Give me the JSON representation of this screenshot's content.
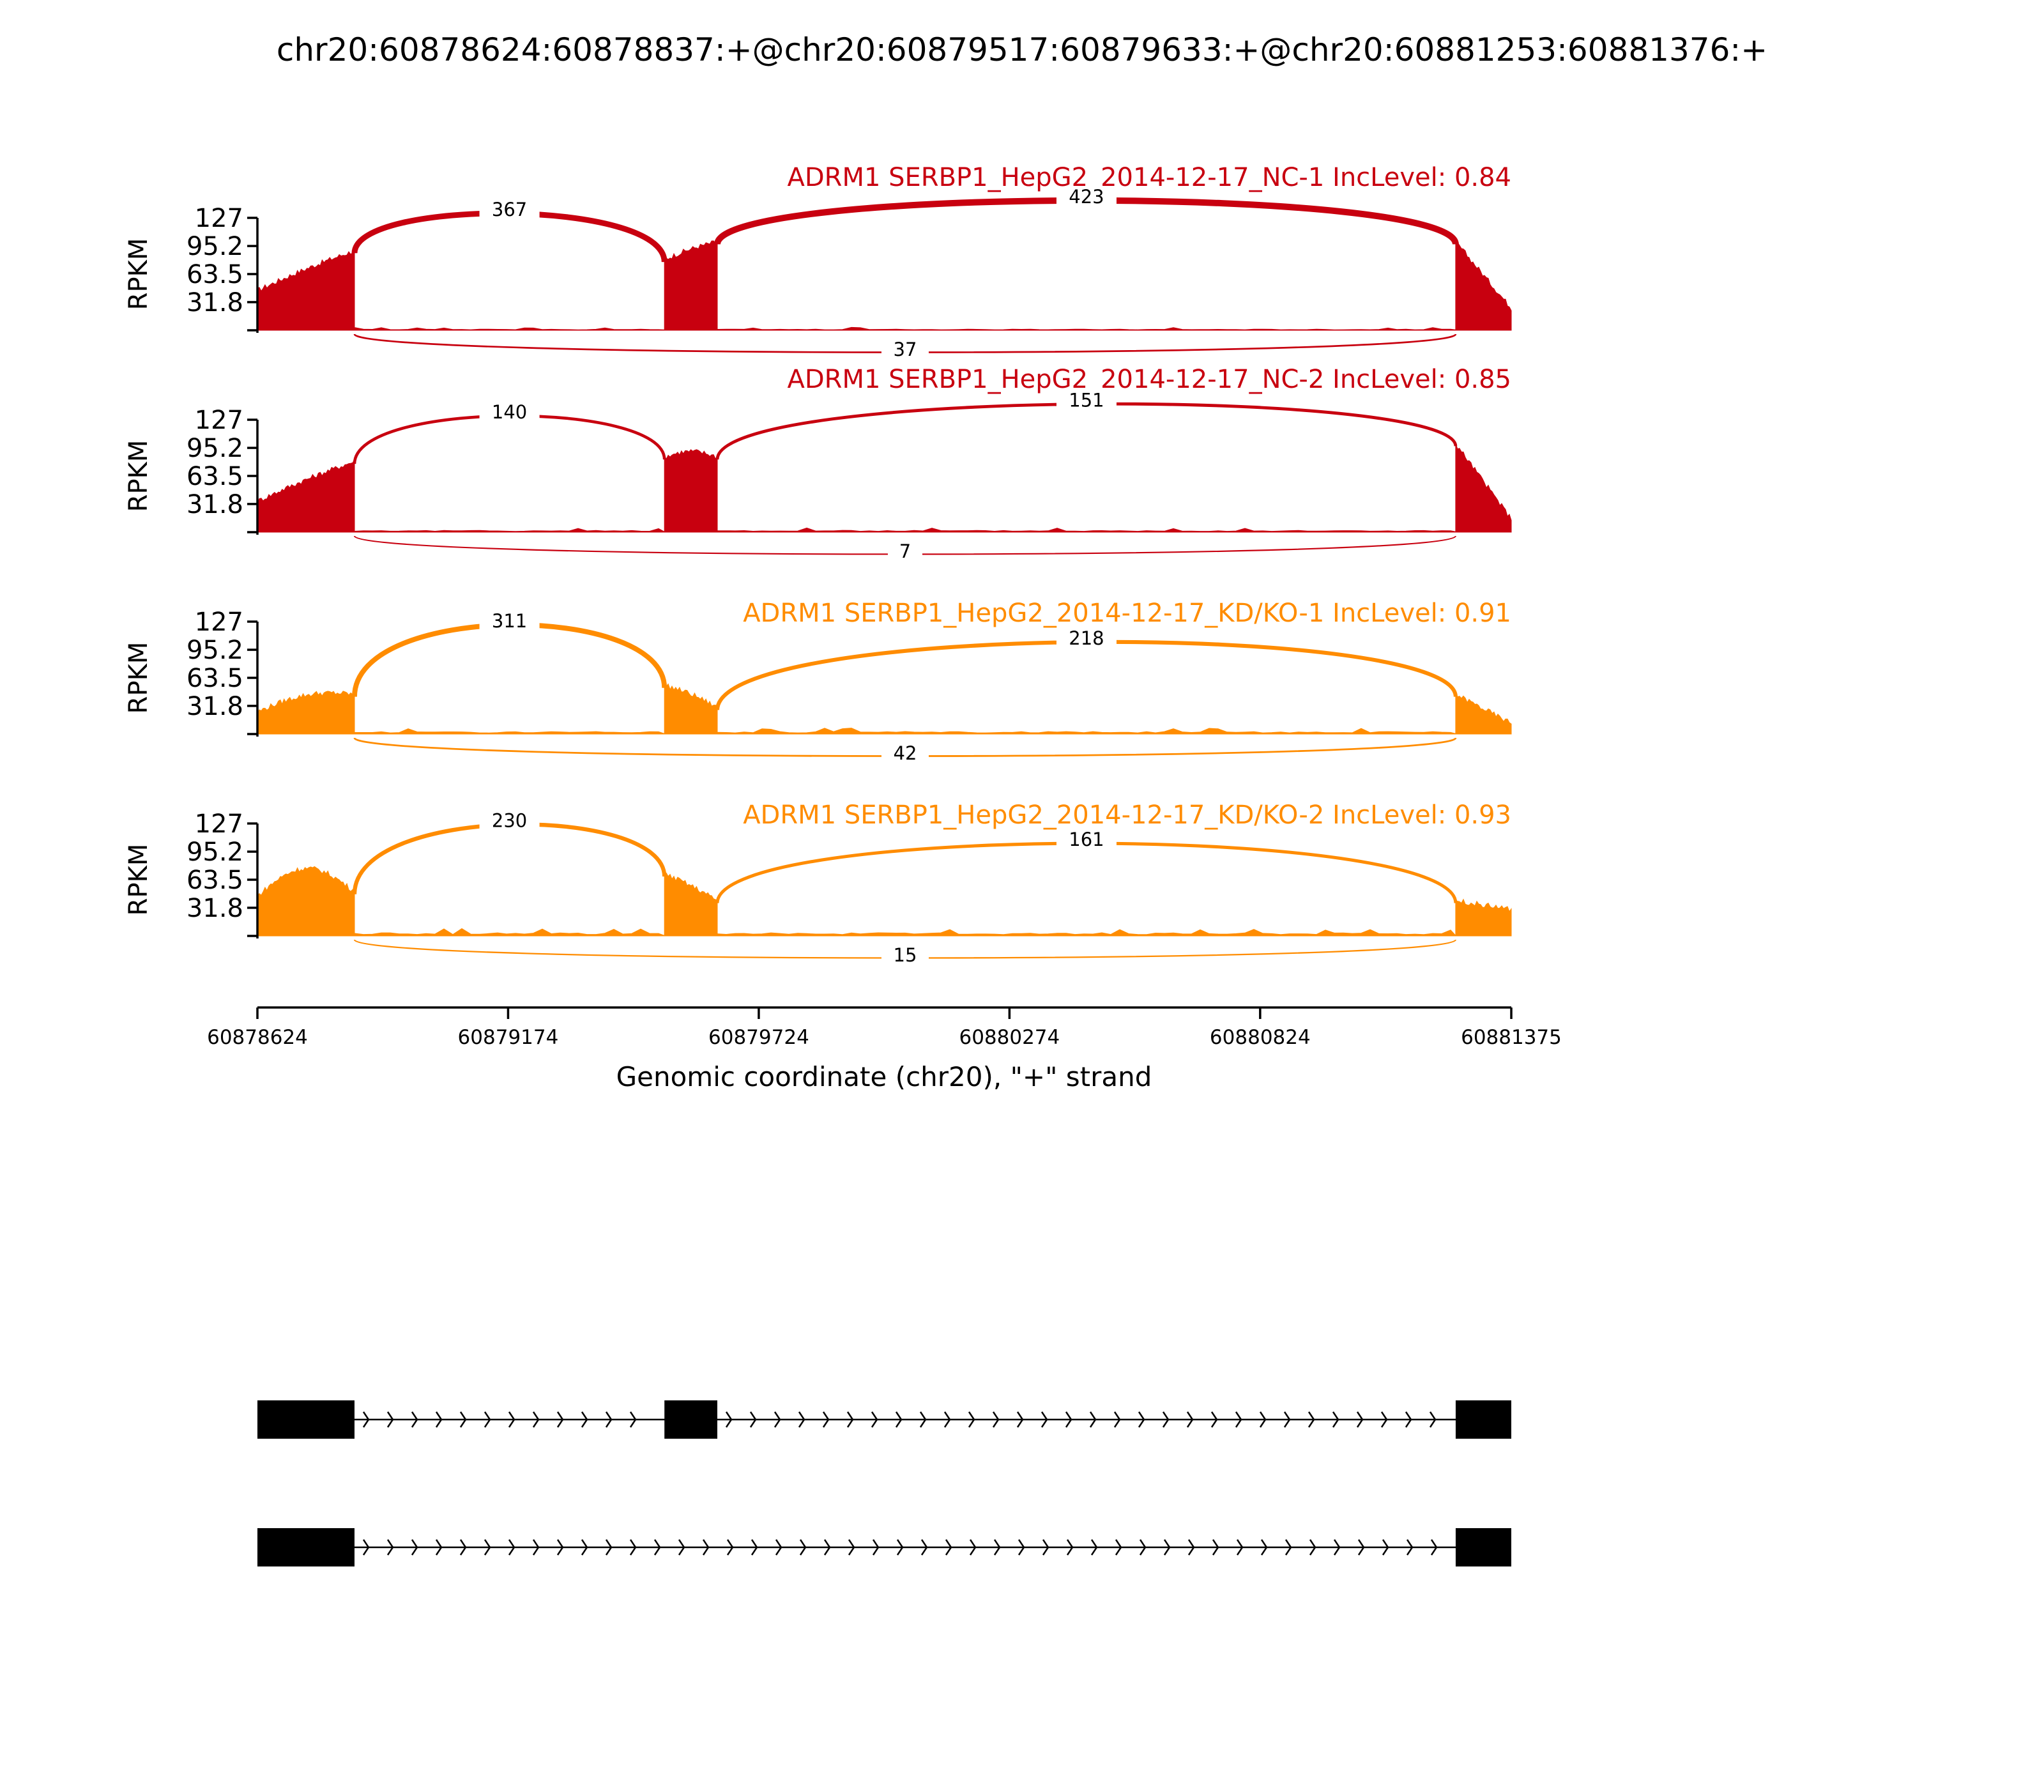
{
  "chart_data": {
    "type": "sashimi",
    "title": "chr20:60878624:60878837:+@chr20:60879517:60879633:+@chr20:60881253:60881376:+",
    "xlabel": "Genomic coordinate (chr20), \"+\" strand",
    "ylabel": "RPKM",
    "xlim": [
      60878624,
      60881375
    ],
    "xticks": [
      "60878624",
      "60879174",
      "60879724",
      "60880274",
      "60880824",
      "60881375"
    ],
    "ylim": [
      0,
      127
    ],
    "yticks": [
      "127",
      "95.2",
      "63.5",
      "31.8"
    ],
    "exons": [
      [
        60878624,
        60878837
      ],
      [
        60879517,
        60879633
      ],
      [
        60881253,
        60881376
      ]
    ],
    "colors": {
      "NC": "#c8000f",
      "KD": "#ff8c00"
    },
    "samples": [
      {
        "name": "ADRM1 SERBP1_HepG2_2014-12-17_NC-1 IncLevel: 0.84",
        "color": "#c8000f",
        "junctions": [
          {
            "from": 60878837,
            "to": 60879517,
            "count": "367"
          },
          {
            "from": 60879633,
            "to": 60881253,
            "count": "423"
          },
          {
            "from": 60878837,
            "to": 60881253,
            "count": "37"
          }
        ],
        "coverage": [
          {
            "exon": 0,
            "start": 45,
            "end": 90,
            "peak": 92
          },
          {
            "exon": 1,
            "start": 80,
            "end": 100,
            "peak": 102
          },
          {
            "exon": 2,
            "start": 100,
            "end": 25,
            "peak": 100
          }
        ]
      },
      {
        "name": "ADRM1 SERBP1_HepG2_2014-12-17_NC-2 IncLevel: 0.85",
        "color": "#c8000f",
        "junctions": [
          {
            "from": 60878837,
            "to": 60879517,
            "count": "140"
          },
          {
            "from": 60879633,
            "to": 60881253,
            "count": "151"
          },
          {
            "from": 60878837,
            "to": 60881253,
            "count": "7"
          }
        ],
        "coverage": [
          {
            "exon": 0,
            "start": 35,
            "end": 80,
            "peak": 82
          },
          {
            "exon": 1,
            "start": 85,
            "end": 85,
            "peak": 92
          },
          {
            "exon": 2,
            "start": 100,
            "end": 15,
            "peak": 100
          }
        ]
      },
      {
        "name": "ADRM1 SERBP1_HepG2_2014-12-17_KD/KO-1 IncLevel: 0.91",
        "color": "#ff8c00",
        "junctions": [
          {
            "from": 60878837,
            "to": 60879517,
            "count": "311"
          },
          {
            "from": 60879633,
            "to": 60881253,
            "count": "218"
          },
          {
            "from": 60878837,
            "to": 60881253,
            "count": "42"
          }
        ],
        "coverage": [
          {
            "exon": 0,
            "start": 25,
            "end": 45,
            "peak": 55
          },
          {
            "exon": 1,
            "start": 55,
            "end": 30,
            "peak": 58
          },
          {
            "exon": 2,
            "start": 45,
            "end": 12,
            "peak": 45
          }
        ]
      },
      {
        "name": "ADRM1 SERBP1_HepG2_2014-12-17_KD/KO-2 IncLevel: 0.93",
        "color": "#ff8c00",
        "junctions": [
          {
            "from": 60878837,
            "to": 60879517,
            "count": "230"
          },
          {
            "from": 60879633,
            "to": 60881253,
            "count": "161"
          },
          {
            "from": 60878837,
            "to": 60881253,
            "count": "15"
          }
        ],
        "coverage": [
          {
            "exon": 0,
            "start": 45,
            "end": 50,
            "peak": 82
          },
          {
            "exon": 1,
            "start": 70,
            "end": 40,
            "peak": 72
          },
          {
            "exon": 2,
            "start": 40,
            "end": 30,
            "peak": 40
          }
        ]
      }
    ],
    "isoforms": [
      {
        "exons": [
          0,
          1,
          2
        ]
      },
      {
        "exons": [
          0,
          2
        ]
      }
    ]
  }
}
